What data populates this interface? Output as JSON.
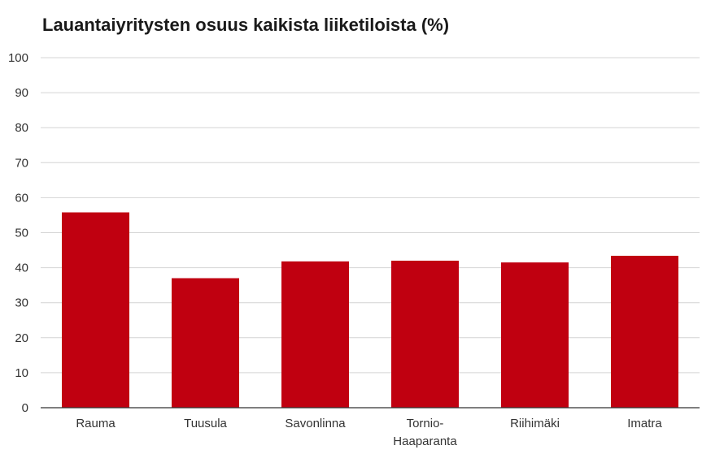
{
  "chart_data": {
    "type": "bar",
    "title": "Lauantaiyritysten osuus kaikista liiketiloista (%)",
    "categories": [
      [
        "Rauma"
      ],
      [
        "Tuusula"
      ],
      [
        "Savonlinna"
      ],
      [
        "Tornio-",
        "Haaparanta"
      ],
      [
        "Riihimäki"
      ],
      [
        "Imatra"
      ]
    ],
    "values": [
      55.8,
      37.0,
      41.8,
      42.0,
      41.5,
      43.4
    ],
    "ylim": [
      0,
      100
    ],
    "yticks": [
      "0",
      "10",
      "20",
      "30",
      "40",
      "50",
      "60",
      "70",
      "80",
      "90",
      "100"
    ],
    "grid": true,
    "xlabel": "",
    "ylabel": "",
    "bar_color": "#c00010",
    "grid_color": "#d4d4d4",
    "axis_color": "#333333"
  }
}
